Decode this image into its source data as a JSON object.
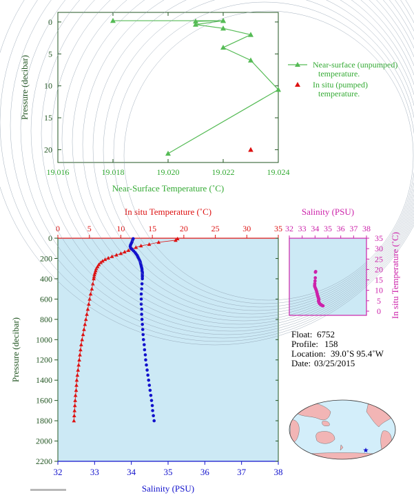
{
  "colors": {
    "green": "#55bb55",
    "green_text": "#33aa33",
    "dark_green": "#225522",
    "red": "#dd1111",
    "blue": "#1111cc",
    "magenta": "#cc22aa",
    "panel_bg": "#cce9f5",
    "axis_red": "#dd1111",
    "axis_blue": "#1111cc",
    "axis_magenta": "#cc22aa",
    "land": "#f2b5b5",
    "ocean": "#d3eefa"
  },
  "chart_data": [
    {
      "id": "near-surface",
      "type": "line",
      "xlabel": "Near-Surface Temperature (˚C)",
      "ylabel": "Pressure (decibar)",
      "xlim": [
        19.016,
        19.024
      ],
      "ylim": [
        22,
        -1.5
      ],
      "xticks": [
        "19.016",
        "19.018",
        "19.020",
        "19.022",
        "19.024"
      ],
      "xtick_values": [
        19.016,
        19.018,
        19.02,
        19.022,
        19.024
      ],
      "yticks": [
        "0",
        "5",
        "10",
        "15",
        "20"
      ],
      "ytick_values": [
        0,
        5,
        10,
        15,
        20
      ],
      "series": [
        {
          "name": "Near-surface (unpumped) temperature.",
          "marker": "triangle",
          "line": true,
          "points": [
            {
              "x": 19.018,
              "y": -0.2
            },
            {
              "x": 19.022,
              "y": -0.2
            },
            {
              "x": 19.021,
              "y": -0.1
            },
            {
              "x": 19.022,
              "y": -0.2
            },
            {
              "x": 19.021,
              "y": 0.4
            },
            {
              "x": 19.022,
              "y": 1.0
            },
            {
              "x": 19.023,
              "y": 2.0
            },
            {
              "x": 19.022,
              "y": 4.0
            },
            {
              "x": 19.023,
              "y": 6.0
            },
            {
              "x": 19.024,
              "y": 10.6
            },
            {
              "x": 19.02,
              "y": 20.6
            }
          ]
        },
        {
          "name": "In situ (pumped) temperature.",
          "marker": "triangle",
          "line": false,
          "points": [
            {
              "x": 19.023,
              "y": 20.0
            }
          ]
        }
      ],
      "legend": [
        {
          "line1": "Near-surface (unpumped)",
          "line2": "temperature."
        },
        {
          "line1": "In situ (pumped)",
          "line2": "temperature."
        }
      ]
    },
    {
      "id": "profile",
      "type": "scatter",
      "top_xlabel": "In situ Temperature (˚C)",
      "bottom_xlabel": "Salinity (PSU)",
      "ylabel": "Pressure (decibar)",
      "temp_lim": [
        0,
        35
      ],
      "temp_ticks": [
        "0",
        "5",
        "10",
        "15",
        "20",
        "25",
        "30",
        "35"
      ],
      "temp_tick_values": [
        0,
        5,
        10,
        15,
        20,
        25,
        30,
        35
      ],
      "sal_lim": [
        32,
        38
      ],
      "sal_ticks": [
        "32",
        "33",
        "34",
        "35",
        "36",
        "37",
        "38"
      ],
      "sal_tick_values": [
        32,
        33,
        34,
        35,
        36,
        37,
        38
      ],
      "pres_lim": [
        0,
        2200
      ],
      "pres_ticks": [
        "0",
        "200",
        "400",
        "600",
        "800",
        "1000",
        "1200",
        "1400",
        "1600",
        "1800",
        "2000",
        "2200"
      ],
      "pres_tick_values": [
        0,
        200,
        400,
        600,
        800,
        1000,
        1200,
        1400,
        1600,
        1800,
        2000,
        2200
      ],
      "temperature": [
        {
          "p": 5,
          "t": 19.0
        },
        {
          "p": 20,
          "t": 18.7
        },
        {
          "p": 40,
          "t": 16.0
        },
        {
          "p": 60,
          "t": 14.5
        },
        {
          "p": 75,
          "t": 13.2
        },
        {
          "p": 90,
          "t": 12.4
        },
        {
          "p": 105,
          "t": 11.8
        },
        {
          "p": 120,
          "t": 11.2
        },
        {
          "p": 135,
          "t": 10.6
        },
        {
          "p": 150,
          "t": 10.0
        },
        {
          "p": 165,
          "t": 9.3
        },
        {
          "p": 180,
          "t": 8.6
        },
        {
          "p": 195,
          "t": 8.0
        },
        {
          "p": 210,
          "t": 7.5
        },
        {
          "p": 225,
          "t": 7.1
        },
        {
          "p": 240,
          "t": 6.8
        },
        {
          "p": 260,
          "t": 6.5
        },
        {
          "p": 280,
          "t": 6.3
        },
        {
          "p": 300,
          "t": 6.1
        },
        {
          "p": 320,
          "t": 6.0
        },
        {
          "p": 340,
          "t": 5.9
        },
        {
          "p": 360,
          "t": 5.8
        },
        {
          "p": 380,
          "t": 5.75
        },
        {
          "p": 400,
          "t": 5.7
        },
        {
          "p": 450,
          "t": 5.55
        },
        {
          "p": 500,
          "t": 5.4
        },
        {
          "p": 550,
          "t": 5.2
        },
        {
          "p": 600,
          "t": 5.05
        },
        {
          "p": 650,
          "t": 4.9
        },
        {
          "p": 700,
          "t": 4.75
        },
        {
          "p": 750,
          "t": 4.6
        },
        {
          "p": 800,
          "t": 4.45
        },
        {
          "p": 850,
          "t": 4.3
        },
        {
          "p": 900,
          "t": 4.15
        },
        {
          "p": 950,
          "t": 4.0
        },
        {
          "p": 1000,
          "t": 3.85
        },
        {
          "p": 1050,
          "t": 3.7
        },
        {
          "p": 1100,
          "t": 3.6
        },
        {
          "p": 1150,
          "t": 3.5
        },
        {
          "p": 1200,
          "t": 3.4
        },
        {
          "p": 1250,
          "t": 3.3
        },
        {
          "p": 1300,
          "t": 3.2
        },
        {
          "p": 1350,
          "t": 3.1
        },
        {
          "p": 1400,
          "t": 3.0
        },
        {
          "p": 1450,
          "t": 2.95
        },
        {
          "p": 1500,
          "t": 2.9
        },
        {
          "p": 1550,
          "t": 2.8
        },
        {
          "p": 1600,
          "t": 2.75
        },
        {
          "p": 1650,
          "t": 2.7
        },
        {
          "p": 1700,
          "t": 2.65
        },
        {
          "p": 1750,
          "t": 2.6
        },
        {
          "p": 1800,
          "t": 2.55
        }
      ],
      "salinity": [
        {
          "p": 5,
          "s": 34.05
        },
        {
          "p": 20,
          "s": 34.03
        },
        {
          "p": 35,
          "s": 34.02
        },
        {
          "p": 50,
          "s": 34.0
        },
        {
          "p": 65,
          "s": 33.98
        },
        {
          "p": 80,
          "s": 33.97
        },
        {
          "p": 95,
          "s": 33.98
        },
        {
          "p": 110,
          "s": 34.02
        },
        {
          "p": 125,
          "s": 34.06
        },
        {
          "p": 140,
          "s": 34.1
        },
        {
          "p": 155,
          "s": 34.13
        },
        {
          "p": 170,
          "s": 34.16
        },
        {
          "p": 185,
          "s": 34.18
        },
        {
          "p": 200,
          "s": 34.2
        },
        {
          "p": 215,
          "s": 34.22
        },
        {
          "p": 230,
          "s": 34.24
        },
        {
          "p": 245,
          "s": 34.25
        },
        {
          "p": 260,
          "s": 34.26
        },
        {
          "p": 275,
          "s": 34.27
        },
        {
          "p": 290,
          "s": 34.28
        },
        {
          "p": 305,
          "s": 34.29
        },
        {
          "p": 320,
          "s": 34.29
        },
        {
          "p": 335,
          "s": 34.3
        },
        {
          "p": 350,
          "s": 34.3
        },
        {
          "p": 365,
          "s": 34.3
        },
        {
          "p": 380,
          "s": 34.3
        },
        {
          "p": 400,
          "s": 34.3
        },
        {
          "p": 450,
          "s": 34.29
        },
        {
          "p": 500,
          "s": 34.28
        },
        {
          "p": 550,
          "s": 34.27
        },
        {
          "p": 600,
          "s": 34.27
        },
        {
          "p": 650,
          "s": 34.27
        },
        {
          "p": 700,
          "s": 34.28
        },
        {
          "p": 750,
          "s": 34.28
        },
        {
          "p": 800,
          "s": 34.29
        },
        {
          "p": 850,
          "s": 34.3
        },
        {
          "p": 900,
          "s": 34.31
        },
        {
          "p": 950,
          "s": 34.32
        },
        {
          "p": 1000,
          "s": 34.33
        },
        {
          "p": 1050,
          "s": 34.35
        },
        {
          "p": 1100,
          "s": 34.36
        },
        {
          "p": 1150,
          "s": 34.38
        },
        {
          "p": 1200,
          "s": 34.39
        },
        {
          "p": 1250,
          "s": 34.41
        },
        {
          "p": 1300,
          "s": 34.43
        },
        {
          "p": 1350,
          "s": 34.45
        },
        {
          "p": 1400,
          "s": 34.47
        },
        {
          "p": 1450,
          "s": 34.49
        },
        {
          "p": 1500,
          "s": 34.51
        },
        {
          "p": 1550,
          "s": 34.53
        },
        {
          "p": 1600,
          "s": 34.55
        },
        {
          "p": 1650,
          "s": 34.57
        },
        {
          "p": 1700,
          "s": 34.58
        },
        {
          "p": 1750,
          "s": 34.6
        },
        {
          "p": 1800,
          "s": 34.62
        }
      ]
    },
    {
      "id": "ts-diagram",
      "type": "scatter",
      "top_xlabel": "Salinity (PSU)",
      "right_ylabel": "In situ Temperature (˚C)",
      "sal_lim": [
        32,
        38
      ],
      "sal_ticks": [
        "32",
        "33",
        "34",
        "35",
        "36",
        "37",
        "38"
      ],
      "sal_tick_values": [
        32,
        33,
        34,
        35,
        36,
        37,
        38
      ],
      "temp_lim": [
        -2,
        35
      ],
      "temp_ticks": [
        "0",
        "5",
        "10",
        "15",
        "20",
        "25",
        "30",
        "35"
      ],
      "temp_tick_values": [
        0,
        5,
        10,
        15,
        20,
        25,
        30,
        35
      ],
      "points": [
        {
          "s": 34.05,
          "t": 19.0
        },
        {
          "s": 34.03,
          "t": 18.7
        },
        {
          "s": 34.02,
          "t": 16.0
        },
        {
          "s": 34.0,
          "t": 14.5
        },
        {
          "s": 33.98,
          "t": 13.2
        },
        {
          "s": 33.97,
          "t": 12.4
        },
        {
          "s": 33.98,
          "t": 11.8
        },
        {
          "s": 34.02,
          "t": 11.2
        },
        {
          "s": 34.06,
          "t": 10.6
        },
        {
          "s": 34.1,
          "t": 10.0
        },
        {
          "s": 34.13,
          "t": 9.3
        },
        {
          "s": 34.16,
          "t": 8.6
        },
        {
          "s": 34.18,
          "t": 8.0
        },
        {
          "s": 34.2,
          "t": 7.5
        },
        {
          "s": 34.22,
          "t": 7.1
        },
        {
          "s": 34.24,
          "t": 6.8
        },
        {
          "s": 34.26,
          "t": 6.3
        },
        {
          "s": 34.28,
          "t": 6.0
        },
        {
          "s": 34.3,
          "t": 5.75
        },
        {
          "s": 34.29,
          "t": 5.4
        },
        {
          "s": 34.27,
          "t": 5.05
        },
        {
          "s": 34.28,
          "t": 4.6
        },
        {
          "s": 34.3,
          "t": 4.3
        },
        {
          "s": 34.32,
          "t": 4.0
        },
        {
          "s": 34.35,
          "t": 3.7
        },
        {
          "s": 34.38,
          "t": 3.5
        },
        {
          "s": 34.41,
          "t": 3.3
        },
        {
          "s": 34.45,
          "t": 3.1
        },
        {
          "s": 34.49,
          "t": 2.95
        },
        {
          "s": 34.53,
          "t": 2.8
        },
        {
          "s": 34.57,
          "t": 2.7
        },
        {
          "s": 34.62,
          "t": 2.55
        }
      ]
    }
  ],
  "info": {
    "float_label": "Float:",
    "float_value": "6752",
    "profile_label": "Profile:",
    "profile_value": "158",
    "location_label": "Location:",
    "location_value": "39.0˚S  95.4˚W",
    "date_label": "Date:",
    "date_value": "03/25/2015"
  },
  "map": {
    "float_marker": "star-icon"
  }
}
